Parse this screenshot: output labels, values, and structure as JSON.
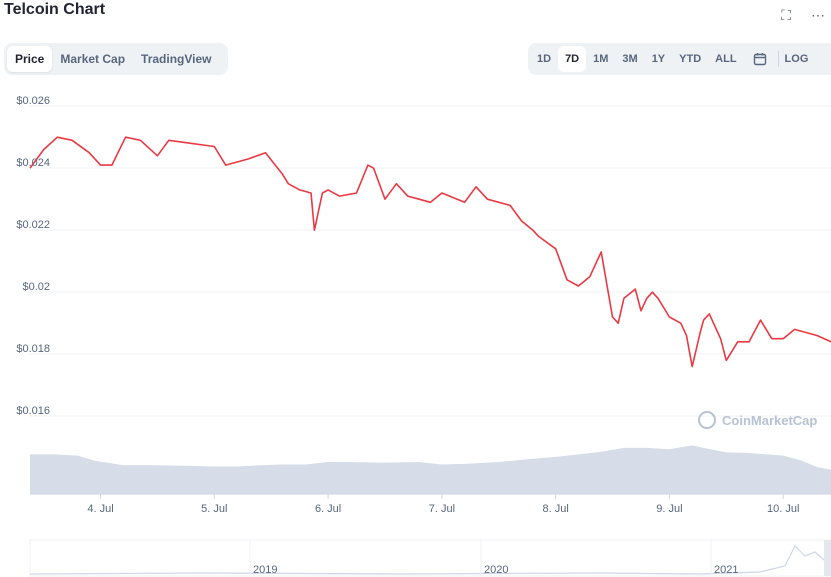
{
  "header": {
    "title": "Telcoin Chart",
    "fullscreen_icon": "fullscreen-icon",
    "more_icon": "more-icon"
  },
  "tabs": [
    {
      "label": "Price",
      "active": true
    },
    {
      "label": "Market Cap",
      "active": false
    },
    {
      "label": "TradingView",
      "active": false
    }
  ],
  "ranges": [
    {
      "label": "1D",
      "active": false
    },
    {
      "label": "7D",
      "active": true
    },
    {
      "label": "1M",
      "active": false
    },
    {
      "label": "3M",
      "active": false
    },
    {
      "label": "1Y",
      "active": false
    },
    {
      "label": "YTD",
      "active": false
    },
    {
      "label": "ALL",
      "active": false
    }
  ],
  "calendar_icon": "calendar-icon",
  "log_label": "LOG",
  "watermark": "CoinMarketCap",
  "colors": {
    "price_line": "#ea3943",
    "volume_fill": "#cfd6e4",
    "accent": "#222531",
    "muted": "#58667e"
  },
  "chart_data": {
    "type": "line",
    "title": "Telcoin Chart",
    "y_ticks": [
      "$0.026",
      "$0.024",
      "$0.022",
      "$0.02",
      "$0.018",
      "$0.016"
    ],
    "y_tick_values": [
      0.026,
      0.024,
      0.022,
      0.02,
      0.018,
      0.016
    ],
    "ylim": [
      0.016,
      0.026
    ],
    "x_ticks": [
      "4. Jul",
      "5. Jul",
      "6. Jul",
      "7. Jul",
      "8. Jul",
      "9. Jul",
      "10. Jul"
    ],
    "x_tick_days": [
      4,
      5,
      6,
      7,
      8,
      9,
      10
    ],
    "xlim_days": [
      3.38,
      10.42
    ],
    "grid": true,
    "series": [
      {
        "x": [
          3.38,
          3.5,
          3.62,
          3.75,
          3.9,
          4.0,
          4.1,
          4.22,
          4.35,
          4.5,
          4.6,
          4.8,
          5.0,
          5.1,
          5.3,
          5.45,
          5.6,
          5.65,
          5.75,
          5.85,
          5.88,
          5.95,
          6.0,
          6.1,
          6.25,
          6.35,
          6.4,
          6.5,
          6.6,
          6.7,
          6.8,
          6.9,
          7.0,
          7.2,
          7.3,
          7.4,
          7.6,
          7.7,
          7.8,
          7.85,
          8.0,
          8.1,
          8.2,
          8.3,
          8.4,
          8.5,
          8.55,
          8.6,
          8.7,
          8.75,
          8.8,
          8.85,
          8.9,
          9.0,
          9.1,
          9.15,
          9.2,
          9.27,
          9.3,
          9.35,
          9.45,
          9.5,
          9.6,
          9.7,
          9.8,
          9.9,
          10.0,
          10.1,
          10.2,
          10.3,
          10.42
        ],
        "values": [
          0.0238,
          0.0244,
          0.0248,
          0.0247,
          0.0243,
          0.0239,
          0.0239,
          0.0248,
          0.0247,
          0.0242,
          0.0247,
          0.0246,
          0.0245,
          0.0239,
          0.0241,
          0.0243,
          0.0236,
          0.0233,
          0.0231,
          0.023,
          0.0218,
          0.023,
          0.0231,
          0.0229,
          0.023,
          0.0239,
          0.0238,
          0.0228,
          0.0233,
          0.0229,
          0.0228,
          0.0227,
          0.023,
          0.0227,
          0.0232,
          0.0228,
          0.0226,
          0.0221,
          0.0218,
          0.0216,
          0.0212,
          0.0202,
          0.02,
          0.0203,
          0.0211,
          0.019,
          0.0188,
          0.0196,
          0.0199,
          0.0192,
          0.0196,
          0.0198,
          0.0196,
          0.019,
          0.0188,
          0.0184,
          0.0174,
          0.0185,
          0.0189,
          0.0191,
          0.0183,
          0.0176,
          0.0182,
          0.0182,
          0.0189,
          0.0183,
          0.0183,
          0.0186,
          0.0185,
          0.0184,
          0.0182
        ]
      }
    ],
    "volume": {
      "x": [
        3.38,
        3.6,
        3.8,
        3.95,
        4.2,
        4.5,
        4.8,
        5.0,
        5.2,
        5.4,
        5.6,
        5.8,
        6.0,
        6.2,
        6.5,
        6.8,
        7.0,
        7.2,
        7.5,
        7.8,
        8.0,
        8.2,
        8.4,
        8.6,
        8.8,
        9.0,
        9.2,
        9.3,
        9.5,
        9.7,
        10.0,
        10.15,
        10.3,
        10.42
      ],
      "values": [
        0.62,
        0.62,
        0.6,
        0.52,
        0.45,
        0.45,
        0.44,
        0.43,
        0.43,
        0.45,
        0.46,
        0.46,
        0.5,
        0.5,
        0.49,
        0.5,
        0.46,
        0.47,
        0.5,
        0.55,
        0.58,
        0.62,
        0.66,
        0.72,
        0.72,
        0.7,
        0.76,
        0.72,
        0.65,
        0.64,
        0.6,
        0.53,
        0.42,
        0.38
      ]
    },
    "navigator": {
      "x_labels": [
        "2019",
        "2020",
        "2021"
      ]
    }
  }
}
